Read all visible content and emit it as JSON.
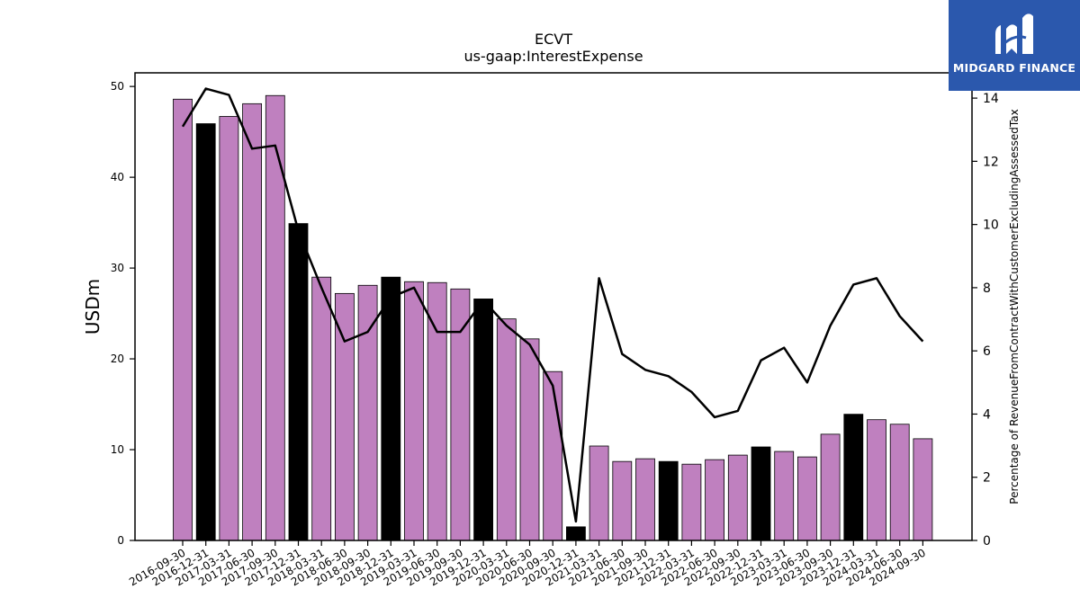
{
  "brand": {
    "name": "MIDGARD FINANCE",
    "bg_color": "#2b58ad"
  },
  "chart_data": {
    "type": "bar",
    "title": "ECVT",
    "subtitle": "us-gaap:InterestExpense",
    "ylabel": "USDm",
    "y2label": "Percentage of RevenueFromContractWithCustomerExcludingAssessedTax",
    "ylim": [
      0,
      51.5
    ],
    "y2lim": [
      0,
      14.8
    ],
    "yticks": [
      0,
      10,
      20,
      30,
      40,
      50
    ],
    "y2ticks": [
      0,
      2,
      4,
      6,
      8,
      10,
      12,
      14
    ],
    "categories": [
      "2016-09-30",
      "2016-12-31",
      "2017-03-31",
      "2017-06-30",
      "2017-09-30",
      "2017-12-31",
      "2018-03-31",
      "2018-06-30",
      "2018-09-30",
      "2018-12-31",
      "2019-03-31",
      "2019-06-30",
      "2019-09-30",
      "2019-12-31",
      "2020-03-31",
      "2020-06-30",
      "2020-09-30",
      "2020-12-31",
      "2021-03-31",
      "2021-06-30",
      "2021-09-30",
      "2021-12-31",
      "2022-03-31",
      "2022-06-30",
      "2022-09-30",
      "2022-12-31",
      "2023-03-31",
      "2023-06-30",
      "2023-09-30",
      "2023-12-31",
      "2024-03-31",
      "2024-06-30",
      "2024-09-30"
    ],
    "series": [
      {
        "kind": "bar",
        "values": [
          48.6,
          45.9,
          46.7,
          48.1,
          49.0,
          34.9,
          29.0,
          27.2,
          28.1,
          29.0,
          28.5,
          28.4,
          27.7,
          26.6,
          24.4,
          22.2,
          18.6,
          1.5,
          10.4,
          8.7,
          9.0,
          8.7,
          8.4,
          8.9,
          9.4,
          10.3,
          9.8,
          9.2,
          11.7,
          13.9,
          13.3,
          12.8,
          11.2
        ],
        "highlight_indices": [
          1,
          5,
          9,
          13,
          17,
          21,
          25,
          29
        ],
        "color": "#bf80bf",
        "highlight_color": "#000000"
      },
      {
        "kind": "line",
        "axis": "right",
        "values": [
          13.1,
          14.3,
          14.1,
          12.4,
          12.5,
          9.8,
          8.0,
          6.3,
          6.6,
          7.7,
          8.0,
          6.6,
          6.6,
          7.6,
          6.8,
          6.2,
          4.9,
          0.6,
          8.3,
          5.9,
          5.4,
          5.2,
          4.7,
          3.9,
          4.1,
          5.7,
          6.1,
          5.0,
          6.8,
          8.1,
          8.3,
          7.1,
          6.3
        ],
        "color": "#000000"
      }
    ],
    "grid": false,
    "legend": "none"
  }
}
